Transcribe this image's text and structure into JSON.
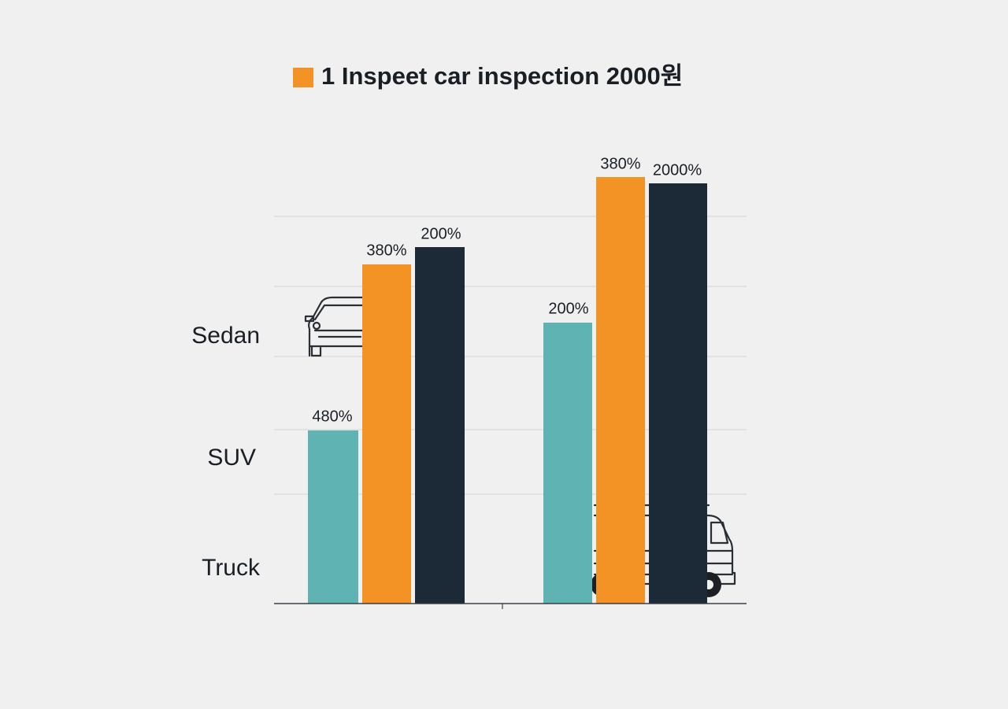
{
  "legend": {
    "label": "1 Inspeet car inspection 2000원"
  },
  "row_labels": [
    "Sedan",
    "SUV",
    "Truck"
  ],
  "groups": [
    {
      "bars": [
        {
          "label": "480%"
        },
        {
          "label": "380%"
        },
        {
          "label": "200%"
        }
      ]
    },
    {
      "bars": [
        {
          "label": "200%"
        },
        {
          "label": "380%"
        },
        {
          "label": "2000%"
        }
      ]
    }
  ]
}
